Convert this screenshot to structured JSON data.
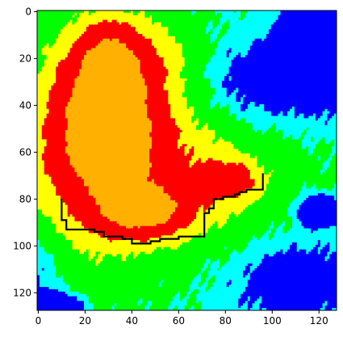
{
  "chart_data": {
    "type": "heatmap",
    "title": "",
    "xlabel": "",
    "ylabel": "",
    "xlim": [
      -0.5,
      127.5
    ],
    "ylim": [
      127.5,
      -0.5
    ],
    "x_ticks": [
      0,
      20,
      40,
      60,
      80,
      100,
      120
    ],
    "y_ticks": [
      0,
      20,
      40,
      60,
      80,
      100,
      120
    ],
    "x_tick_labels": [
      "0",
      "20",
      "40",
      "60",
      "80",
      "100",
      "120"
    ],
    "y_tick_labels": [
      "0",
      "20",
      "40",
      "60",
      "80",
      "100",
      "120"
    ],
    "grid": false,
    "legend": "none",
    "colormap": [
      {
        "level": 0,
        "color": "#0000ff"
      },
      {
        "level": 1,
        "color": "#00ffff"
      },
      {
        "level": 2,
        "color": "#00ff00"
      },
      {
        "level": 3,
        "color": "#ffff00"
      },
      {
        "level": 4,
        "color": "#ff0000"
      },
      {
        "level": 5,
        "color": "#ffb000"
      }
    ],
    "path_color": "#000000",
    "path": [
      [
        10,
        80
      ],
      [
        10,
        89
      ],
      [
        12,
        89
      ],
      [
        12,
        93
      ],
      [
        24,
        93
      ],
      [
        24,
        94
      ],
      [
        28,
        94
      ],
      [
        28,
        96
      ],
      [
        36,
        96
      ],
      [
        36,
        97
      ],
      [
        40,
        97
      ],
      [
        40,
        99
      ],
      [
        48,
        99
      ],
      [
        48,
        98
      ],
      [
        52,
        98
      ],
      [
        52,
        97
      ],
      [
        60,
        97
      ],
      [
        60,
        96
      ],
      [
        71,
        96
      ],
      [
        71,
        86
      ],
      [
        73,
        86
      ],
      [
        73,
        84
      ],
      [
        75,
        84
      ],
      [
        75,
        80
      ],
      [
        79,
        80
      ],
      [
        79,
        79
      ],
      [
        84,
        79
      ],
      [
        84,
        78
      ],
      [
        86,
        78
      ],
      [
        86,
        77
      ],
      [
        89,
        77
      ],
      [
        89,
        76
      ],
      [
        96,
        76
      ],
      [
        96,
        69
      ]
    ]
  }
}
